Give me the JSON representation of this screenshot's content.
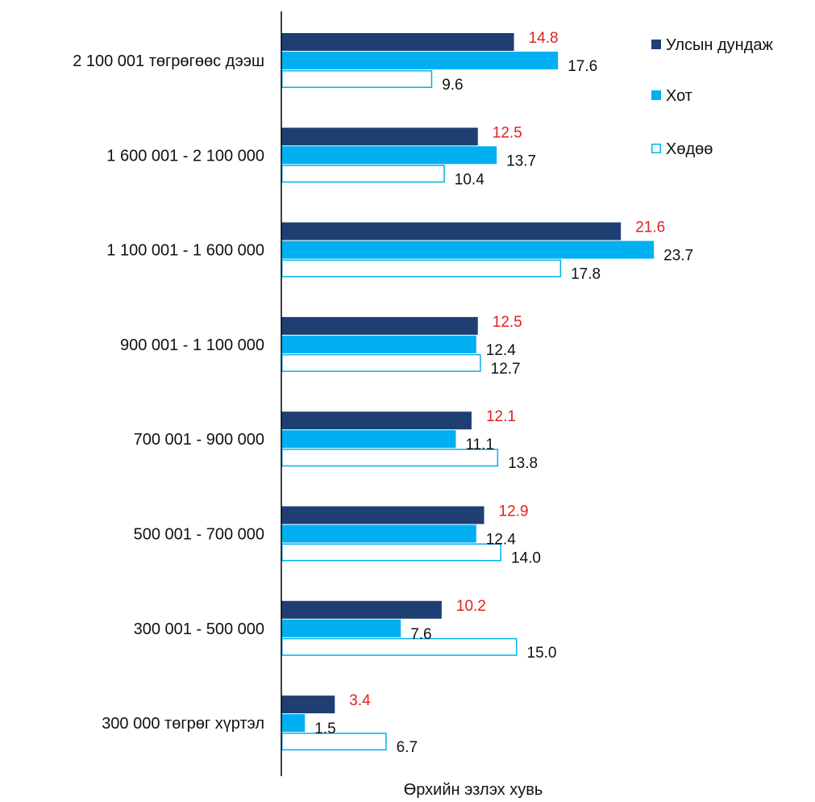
{
  "chart_data": {
    "type": "bar",
    "orientation": "horizontal",
    "xlabel": "Өрхийн эзлэх хувь",
    "categories": [
      "2 100 001 төгрөгөөс дээш",
      "1 600 001 - 2 100 000",
      "1 100 001 - 1 600 000",
      "900 001 - 1 100 000",
      "700 001 - 900 000",
      "500 001 - 700 000",
      "300 001 - 500 000",
      "300 000 төгрөг хүртэл"
    ],
    "series": [
      {
        "name": "Улсын дундаж",
        "values": [
          14.8,
          12.5,
          21.6,
          12.5,
          12.1,
          12.9,
          10.2,
          3.4
        ],
        "labels": [
          "14.8",
          "12.5",
          "21.6",
          "12.5",
          "12.1",
          "12.9",
          "10.2",
          "3.4"
        ],
        "color": "#1f3f73",
        "label_color": "#e02020",
        "style": "filled"
      },
      {
        "name": "Хот",
        "values": [
          17.6,
          13.7,
          23.7,
          12.4,
          11.1,
          12.4,
          7.6,
          1.5
        ],
        "labels": [
          "17.6",
          "13.7",
          "23.7",
          "12.4",
          "11.1",
          "12.4",
          "7.6",
          "1.5"
        ],
        "color": "#00b0f0",
        "label_color": "#111111",
        "style": "filled"
      },
      {
        "name": "Хөдөө",
        "values": [
          9.6,
          10.4,
          17.8,
          12.7,
          13.8,
          14.0,
          15.0,
          6.7
        ],
        "labels": [
          "9.6",
          "10.4",
          "17.8",
          "12.7",
          "13.8",
          "14.0",
          "15.0",
          "6.7"
        ],
        "color": "#00b0f0",
        "label_color": "#111111",
        "style": "outline"
      }
    ],
    "xlim": [
      0,
      25
    ],
    "grid": false,
    "legend_position": "top-right"
  }
}
